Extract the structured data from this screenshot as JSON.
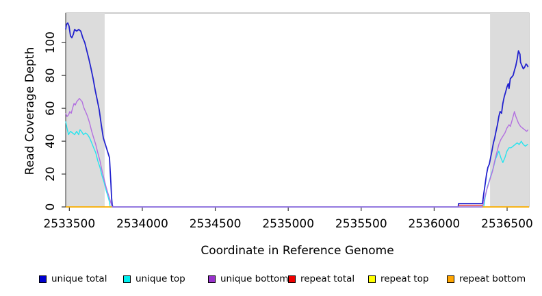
{
  "chart_data": {
    "type": "line",
    "title": "",
    "xlabel": "Coordinate in Reference Genome",
    "ylabel": "Read Coverage Depth",
    "xlim": [
      2533475,
      2536650
    ],
    "ylim": [
      0,
      118
    ],
    "x_ticks": [
      2533500,
      2534000,
      2534500,
      2535000,
      2535500,
      2536000,
      2536500
    ],
    "y_ticks": [
      0,
      20,
      40,
      60,
      80,
      100
    ],
    "grid": false,
    "legend_position": "bottom",
    "box_color": "#999999",
    "axis_color": "#333333",
    "shaded_regions": [
      {
        "name": "repeat-region-left",
        "x0": 2533475,
        "x1": 2533742,
        "color": "#dcdcdc"
      },
      {
        "name": "repeat-region-right",
        "x0": 2536383,
        "x1": 2536650,
        "color": "#dcdcdc"
      }
    ],
    "series": [
      {
        "name": "unique total",
        "color": "#0000CD",
        "line_color": "#2222CE",
        "width": 1.8,
        "segments": [
          [
            [
              2533475,
              108
            ],
            [
              2533480,
              111
            ],
            [
              2533489,
              112
            ],
            [
              2533498,
              110
            ],
            [
              2533508,
              104
            ],
            [
              2533517,
              103
            ],
            [
              2533527,
              105
            ],
            [
              2533536,
              108
            ],
            [
              2533550,
              107
            ],
            [
              2533564,
              108
            ],
            [
              2533578,
              107
            ],
            [
              2533592,
              103
            ],
            [
              2533606,
              100
            ],
            [
              2533620,
              95
            ],
            [
              2533634,
              90
            ],
            [
              2533649,
              84
            ],
            [
              2533663,
              78
            ],
            [
              2533677,
              71
            ],
            [
              2533691,
              65
            ],
            [
              2533705,
              59
            ],
            [
              2533719,
              50
            ],
            [
              2533733,
              42
            ],
            [
              2533747,
              38
            ],
            [
              2533761,
              34
            ],
            [
              2533775,
              30
            ],
            [
              2533780,
              22
            ],
            [
              2533785,
              14
            ],
            [
              2533789,
              6
            ],
            [
              2533794,
              1
            ],
            [
              2533799,
              0
            ],
            [
              2536165,
              0
            ],
            [
              2536167,
              2
            ],
            [
              2536331,
              2
            ],
            [
              2536340,
              8
            ],
            [
              2536350,
              14
            ],
            [
              2536359,
              20
            ],
            [
              2536368,
              24
            ],
            [
              2536378,
              26
            ],
            [
              2536387,
              30
            ],
            [
              2536396,
              34
            ],
            [
              2536406,
              39
            ],
            [
              2536415,
              42
            ],
            [
              2536424,
              46
            ],
            [
              2536434,
              50
            ],
            [
              2536443,
              55
            ],
            [
              2536452,
              58
            ],
            [
              2536462,
              57
            ],
            [
              2536471,
              63
            ],
            [
              2536480,
              67
            ],
            [
              2536490,
              70
            ],
            [
              2536499,
              73
            ],
            [
              2536508,
              75
            ],
            [
              2536513,
              72
            ],
            [
              2536522,
              78
            ],
            [
              2536532,
              79
            ],
            [
              2536541,
              80
            ],
            [
              2536550,
              83
            ],
            [
              2536560,
              86
            ],
            [
              2536569,
              90
            ],
            [
              2536578,
              95
            ],
            [
              2536588,
              93
            ],
            [
              2536592,
              88
            ],
            [
              2536601,
              86
            ],
            [
              2536611,
              84
            ],
            [
              2536620,
              85
            ],
            [
              2536630,
              87
            ],
            [
              2536639,
              86
            ],
            [
              2536644,
              85
            ]
          ]
        ]
      },
      {
        "name": "unique top",
        "color": "#00EEEE",
        "line_color": "#25E4EE",
        "width": 1.4,
        "segments": [
          [
            [
              2533475,
              52
            ],
            [
              2533484,
              48
            ],
            [
              2533494,
              44
            ],
            [
              2533508,
              46
            ],
            [
              2533522,
              45
            ],
            [
              2533536,
              44
            ],
            [
              2533550,
              46
            ],
            [
              2533564,
              44
            ],
            [
              2533573,
              47
            ],
            [
              2533583,
              46
            ],
            [
              2533597,
              44
            ],
            [
              2533611,
              45
            ],
            [
              2533625,
              44
            ],
            [
              2533639,
              42
            ],
            [
              2533653,
              39
            ],
            [
              2533667,
              36
            ],
            [
              2533681,
              33
            ],
            [
              2533695,
              28
            ],
            [
              2533710,
              24
            ],
            [
              2533724,
              19
            ],
            [
              2533738,
              15
            ],
            [
              2533752,
              10
            ],
            [
              2533766,
              6
            ],
            [
              2533775,
              3
            ],
            [
              2533780,
              0
            ],
            [
              2536340,
              0
            ],
            [
              2536350,
              6
            ],
            [
              2536364,
              12
            ],
            [
              2536378,
              16
            ],
            [
              2536392,
              20
            ],
            [
              2536406,
              24
            ],
            [
              2536420,
              29
            ],
            [
              2536434,
              32
            ],
            [
              2536443,
              34
            ],
            [
              2536457,
              30
            ],
            [
              2536471,
              27
            ],
            [
              2536485,
              30
            ],
            [
              2536499,
              34
            ],
            [
              2536513,
              36
            ],
            [
              2536527,
              36
            ],
            [
              2536541,
              37
            ],
            [
              2536555,
              38
            ],
            [
              2536569,
              39
            ],
            [
              2536583,
              38
            ],
            [
              2536597,
              40
            ],
            [
              2536611,
              38
            ],
            [
              2536625,
              37
            ],
            [
              2536639,
              38
            ],
            [
              2536644,
              38
            ]
          ]
        ]
      },
      {
        "name": "unique bottom",
        "color": "#9932CC",
        "line_color": "#B26FE0",
        "width": 1.4,
        "segments": [
          [
            [
              2533475,
              57
            ],
            [
              2533484,
              55
            ],
            [
              2533494,
              56
            ],
            [
              2533503,
              58
            ],
            [
              2533513,
              57
            ],
            [
              2533522,
              60
            ],
            [
              2533532,
              63
            ],
            [
              2533541,
              62
            ],
            [
              2533550,
              64
            ],
            [
              2533560,
              65
            ],
            [
              2533569,
              66
            ],
            [
              2533578,
              65
            ],
            [
              2533588,
              64
            ],
            [
              2533597,
              61
            ],
            [
              2533606,
              59
            ],
            [
              2533616,
              57
            ],
            [
              2533625,
              55
            ],
            [
              2533639,
              51
            ],
            [
              2533653,
              46
            ],
            [
              2533667,
              42
            ],
            [
              2533681,
              38
            ],
            [
              2533695,
              33
            ],
            [
              2533710,
              28
            ],
            [
              2533724,
              22
            ],
            [
              2533738,
              17
            ],
            [
              2533752,
              12
            ],
            [
              2533766,
              8
            ],
            [
              2533780,
              4
            ],
            [
              2533789,
              1
            ],
            [
              2533794,
              0
            ],
            [
              2536331,
              0
            ],
            [
              2536345,
              5
            ],
            [
              2536359,
              10
            ],
            [
              2536373,
              14
            ],
            [
              2536387,
              18
            ],
            [
              2536401,
              22
            ],
            [
              2536415,
              28
            ],
            [
              2536429,
              33
            ],
            [
              2536443,
              38
            ],
            [
              2536457,
              41
            ],
            [
              2536471,
              43
            ],
            [
              2536485,
              45
            ],
            [
              2536499,
              48
            ],
            [
              2536513,
              50
            ],
            [
              2536522,
              49
            ],
            [
              2536532,
              52
            ],
            [
              2536541,
              55
            ],
            [
              2536550,
              58
            ],
            [
              2536560,
              55
            ],
            [
              2536569,
              53
            ],
            [
              2536578,
              51
            ],
            [
              2536592,
              49
            ],
            [
              2536606,
              48
            ],
            [
              2536620,
              47
            ],
            [
              2536634,
              46
            ],
            [
              2536644,
              47
            ]
          ]
        ]
      },
      {
        "name": "repeat total",
        "color": "#EE0000",
        "line_color": "#E03030",
        "width": 1.4,
        "segments": [
          [
            [
              2536167,
              1
            ],
            [
              2536331,
              1
            ]
          ]
        ]
      },
      {
        "name": "repeat top",
        "color": "#FFFF00",
        "line_color": "#FFFF00",
        "width": 1.4,
        "segments": [
          [
            [
              2533475,
              0
            ],
            [
              2533790,
              0
            ]
          ],
          [
            [
              2536331,
              0
            ],
            [
              2536650,
              0
            ]
          ]
        ]
      },
      {
        "name": "repeat bottom",
        "color": "#FFA500",
        "line_color": "#FFA500",
        "width": 1.6,
        "segments": [
          [
            [
              2533475,
              0
            ],
            [
              2533790,
              0
            ]
          ],
          [
            [
              2536331,
              0
            ],
            [
              2536650,
              0
            ]
          ]
        ]
      }
    ]
  }
}
